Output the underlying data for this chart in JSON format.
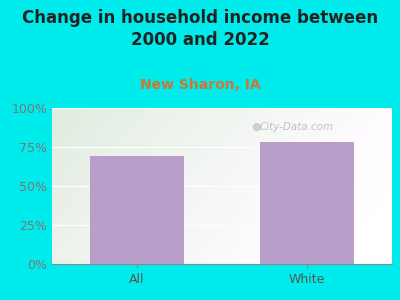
{
  "title": "Change in household income between\n2000 and 2022",
  "subtitle": "New Sharon, IA",
  "categories": [
    "All",
    "White"
  ],
  "values": [
    69.0,
    78.0
  ],
  "bar_color": "#b89ec8",
  "bg_outer": "#00ecec",
  "bg_plot_topleft": "#d6edd6",
  "bg_plot_topright": "#eef4ee",
  "bg_plot_bottomleft": "#e8f5e8",
  "bg_plot_bottomright": "#f8fcf8",
  "title_fontsize": 12,
  "subtitle_fontsize": 10,
  "subtitle_color": "#cc7733",
  "tick_label_color": "#777777",
  "xtick_label_color": "#555555",
  "ylabel_ticks": [
    0,
    25,
    50,
    75,
    100
  ],
  "ylim": [
    0,
    100
  ],
  "watermark": "City-Data.com",
  "watermark_color": "#aaaaaa"
}
